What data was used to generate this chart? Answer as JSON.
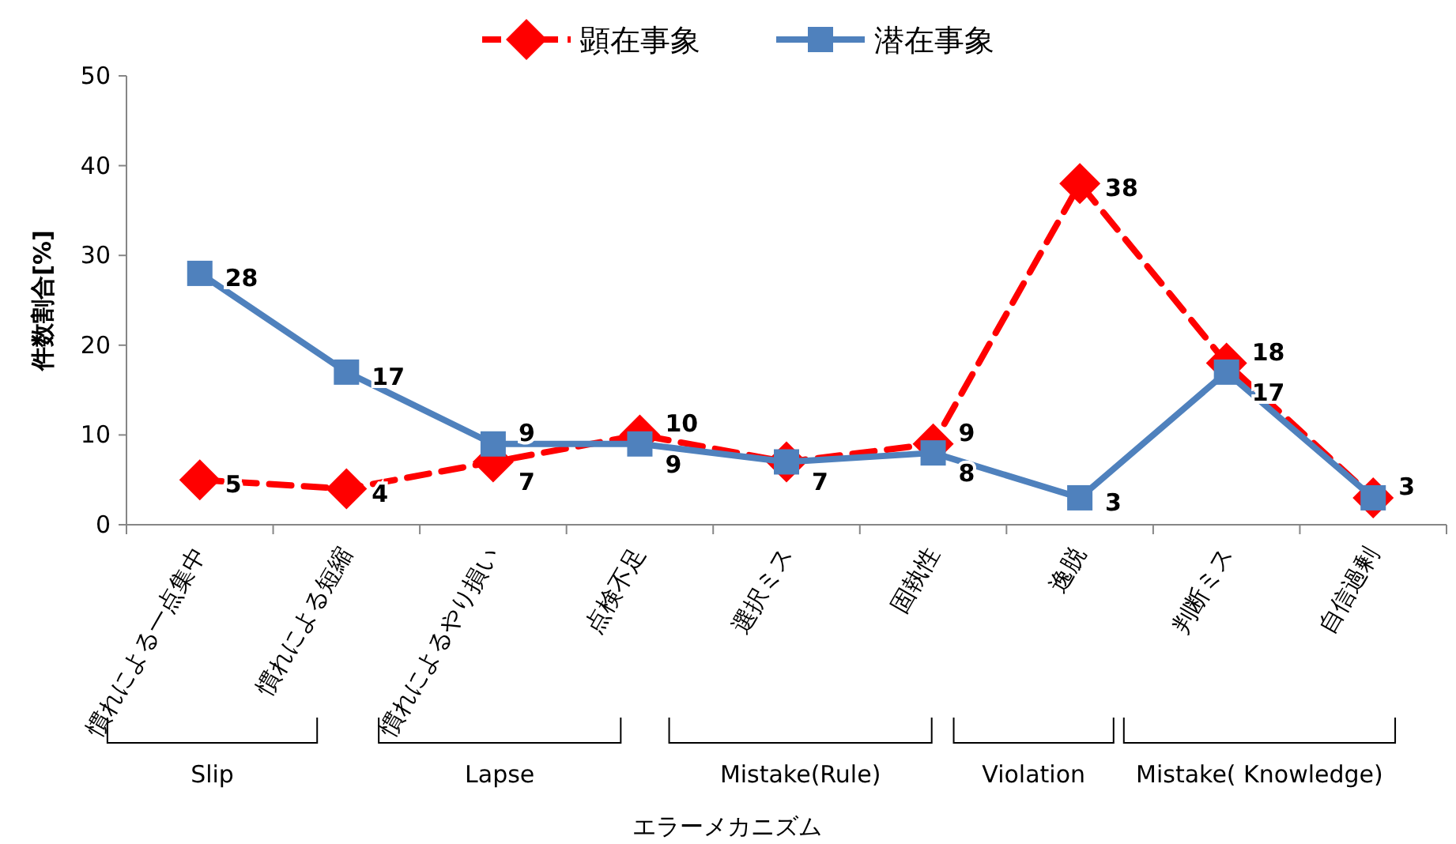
{
  "chart_data": {
    "type": "line",
    "xlabel": "エラーメカニズム",
    "ylabel": "件数割合[%]",
    "categories": [
      "慣れによる一点集中",
      "慣れによる短縮",
      "慣れによるやり損い",
      "点検不足",
      "選択ミス",
      "固執性",
      "逸脱",
      "判断ミス",
      "自信過剰"
    ],
    "ylim": [
      0,
      50
    ],
    "yticks": [
      0,
      10,
      20,
      30,
      40,
      50
    ],
    "legend": "top",
    "grid": false,
    "series": [
      {
        "name": "顕在事象",
        "color": "#ff0000",
        "marker": "diamond",
        "line_style": "dashed",
        "values": [
          5,
          4,
          7,
          10,
          7,
          9,
          38,
          18,
          3
        ],
        "value_labels": [
          "5",
          "4",
          "7",
          "10",
          "7",
          "9",
          "38",
          "18",
          null
        ]
      },
      {
        "name": "潜在事象",
        "color": "#4f81bd",
        "marker": "square",
        "line_style": "solid",
        "values": [
          28,
          17,
          9,
          9,
          7,
          8,
          3,
          17,
          3
        ],
        "value_labels": [
          "28",
          "17",
          "9",
          "9",
          null,
          "8",
          "3",
          "17",
          "3"
        ]
      }
    ],
    "annotations": [
      "Slip",
      "Lapse",
      "Mistake(Rule)",
      "Violation",
      "Mistake( Knowledge)"
    ]
  }
}
